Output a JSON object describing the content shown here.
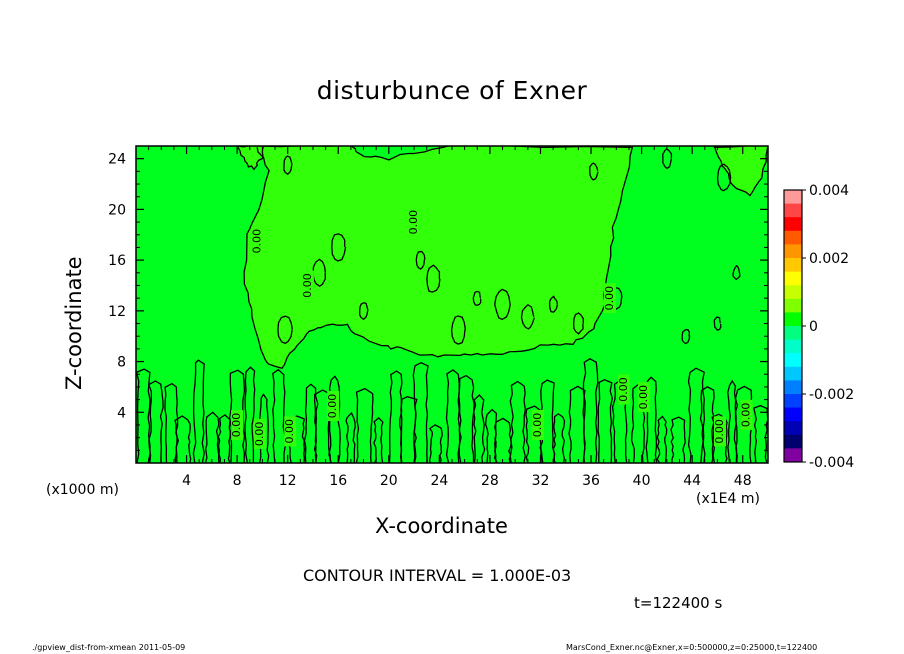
{
  "chart_data": {
    "type": "heatmap",
    "title": "disturbunce of Exner",
    "xlabel": "X-coordinate",
    "ylabel": "Z-coordinate",
    "x_unit_left": "(x1000 m)",
    "x_unit_right": "(x1E4 m)",
    "xlim": [
      0,
      50
    ],
    "ylim": [
      0,
      25
    ],
    "x_ticks": [
      "4",
      "8",
      "12",
      "16",
      "20",
      "24",
      "28",
      "32",
      "36",
      "40",
      "44",
      "48"
    ],
    "x_tick_values": [
      4,
      8,
      12,
      16,
      20,
      24,
      28,
      32,
      36,
      40,
      44,
      48
    ],
    "y_ticks": [
      "4",
      "8",
      "12",
      "16",
      "20",
      "24"
    ],
    "y_tick_values": [
      4,
      8,
      12,
      16,
      20,
      24
    ],
    "colorbar": {
      "range": [
        -0.004,
        0.004
      ],
      "labels": [
        "0.004",
        "0.002",
        "0",
        "-0.002",
        "-0.004"
      ],
      "label_values": [
        0.004,
        0.002,
        0,
        -0.002,
        -0.004
      ],
      "colors": [
        "#ff9a9a",
        "#ff4646",
        "#ff0000",
        "#ff5a00",
        "#ff9600",
        "#ffc800",
        "#ffff00",
        "#c8ff00",
        "#80ff00",
        "#00ff00",
        "#00ff80",
        "#00ffc8",
        "#00ffff",
        "#00c8ff",
        "#0080ff",
        "#0040ff",
        "#0000ff",
        "#0000b4",
        "#00006e",
        "#8000a0"
      ]
    },
    "contour_labels": [
      "0.00",
      "0.00",
      "0.00",
      "0.00",
      "0.00",
      "0.00",
      "0.00",
      "0.00",
      "0.00",
      "0.00",
      "0.00",
      "0.00",
      "0.00"
    ],
    "background_color": "#00ff1e",
    "region_color": "#32ff0a"
  },
  "contour_interval": "CONTOUR INTERVAL = 1.000E-03",
  "time_label": "t=122400 s",
  "footer_left": "./gpview_dist-from-xmean  2011-05-09",
  "footer_right": "MarsCond_Exner.nc@Exner,x=0:500000,z=0:25000,t=122400"
}
